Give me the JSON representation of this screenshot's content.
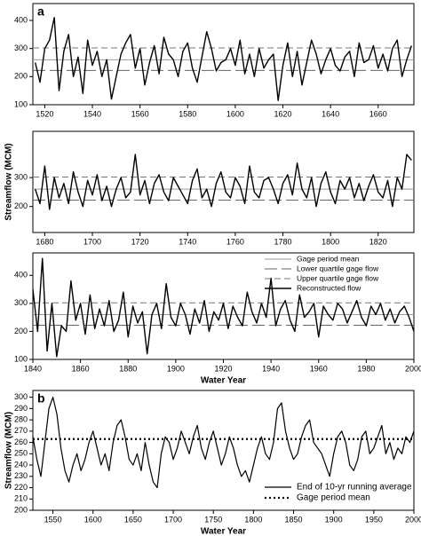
{
  "chart_data": [
    {
      "type": "line",
      "panel_label": "a",
      "xlim": [
        1515,
        1675
      ],
      "xticks": [
        1520,
        1540,
        1560,
        1580,
        1600,
        1620,
        1640,
        1660
      ],
      "ylim": [
        100,
        460
      ],
      "yticks": [
        100,
        200,
        300,
        400
      ],
      "series": [
        {
          "color": "#999999",
          "dash": "none",
          "width": 1,
          "x": [
            1515,
            1675
          ],
          "values": [
            260,
            260
          ]
        },
        {
          "color": "#666666",
          "dash": "14,5",
          "width": 1,
          "x": [
            1515,
            1675
          ],
          "values": [
            222,
            222
          ]
        },
        {
          "color": "#777777",
          "dash": "7,4",
          "width": 1,
          "x": [
            1515,
            1675
          ],
          "values": [
            302,
            302
          ]
        },
        {
          "color": "#000000",
          "dash": "none",
          "width": 1.4,
          "x": [
            1516,
            1518,
            1520,
            1522,
            1524,
            1526,
            1528,
            1530,
            1532,
            1534,
            1536,
            1538,
            1540,
            1542,
            1544,
            1546,
            1548,
            1550,
            1552,
            1554,
            1556,
            1558,
            1560,
            1562,
            1564,
            1566,
            1568,
            1570,
            1572,
            1574,
            1576,
            1578,
            1580,
            1582,
            1584,
            1586,
            1588,
            1590,
            1592,
            1594,
            1596,
            1598,
            1600,
            1602,
            1604,
            1606,
            1608,
            1610,
            1612,
            1614,
            1616,
            1618,
            1620,
            1622,
            1624,
            1626,
            1628,
            1630,
            1632,
            1634,
            1636,
            1638,
            1640,
            1642,
            1644,
            1646,
            1648,
            1650,
            1652,
            1654,
            1656,
            1658,
            1660,
            1662,
            1664,
            1666,
            1668,
            1670,
            1672,
            1674
          ],
          "values": [
            250,
            180,
            300,
            330,
            410,
            150,
            290,
            350,
            200,
            270,
            140,
            330,
            240,
            290,
            200,
            260,
            120,
            200,
            280,
            320,
            350,
            230,
            300,
            170,
            250,
            310,
            210,
            340,
            280,
            260,
            200,
            290,
            320,
            230,
            180,
            270,
            360,
            300,
            220,
            250,
            260,
            300,
            240,
            330,
            210,
            280,
            200,
            300,
            230,
            260,
            280,
            115,
            240,
            320,
            200,
            290,
            170,
            250,
            330,
            280,
            210,
            260,
            300,
            240,
            220,
            270,
            290,
            200,
            320,
            250,
            260,
            310,
            230,
            280,
            220,
            300,
            330,
            200,
            260,
            310
          ]
        }
      ]
    },
    {
      "type": "line",
      "ylabel": "Streamflow (MCM)",
      "xlim": [
        1675,
        1835
      ],
      "xticks": [
        1680,
        1700,
        1720,
        1740,
        1760,
        1780,
        1800,
        1820
      ],
      "ylim": [
        110,
        460
      ],
      "yticks": [
        200,
        300
      ],
      "series": [
        {
          "color": "#999999",
          "dash": "none",
          "width": 1,
          "x": [
            1675,
            1835
          ],
          "values": [
            260,
            260
          ]
        },
        {
          "color": "#666666",
          "dash": "14,5",
          "width": 1,
          "x": [
            1675,
            1835
          ],
          "values": [
            222,
            222
          ]
        },
        {
          "color": "#777777",
          "dash": "7,4",
          "width": 1,
          "x": [
            1675,
            1835
          ],
          "values": [
            302,
            302
          ]
        },
        {
          "color": "#000000",
          "dash": "none",
          "width": 1.4,
          "x": [
            1676,
            1678,
            1680,
            1682,
            1684,
            1686,
            1688,
            1690,
            1692,
            1694,
            1696,
            1698,
            1700,
            1702,
            1704,
            1706,
            1708,
            1710,
            1712,
            1714,
            1716,
            1718,
            1720,
            1722,
            1724,
            1726,
            1728,
            1730,
            1732,
            1734,
            1736,
            1738,
            1740,
            1742,
            1744,
            1746,
            1748,
            1750,
            1752,
            1754,
            1756,
            1758,
            1760,
            1762,
            1764,
            1766,
            1768,
            1770,
            1772,
            1774,
            1776,
            1778,
            1780,
            1782,
            1784,
            1786,
            1788,
            1790,
            1792,
            1794,
            1796,
            1798,
            1800,
            1802,
            1804,
            1806,
            1808,
            1810,
            1812,
            1814,
            1816,
            1818,
            1820,
            1822,
            1824,
            1826,
            1828,
            1830,
            1832,
            1834
          ],
          "values": [
            260,
            210,
            340,
            190,
            300,
            230,
            280,
            210,
            320,
            250,
            200,
            290,
            240,
            310,
            220,
            270,
            200,
            260,
            300,
            230,
            250,
            380,
            240,
            290,
            210,
            280,
            310,
            250,
            220,
            300,
            270,
            240,
            210,
            290,
            330,
            230,
            260,
            200,
            280,
            320,
            250,
            230,
            300,
            270,
            210,
            340,
            250,
            230,
            290,
            300,
            260,
            210,
            280,
            310,
            240,
            350,
            260,
            230,
            300,
            200,
            280,
            320,
            250,
            210,
            290,
            260,
            300,
            230,
            280,
            220,
            270,
            310,
            250,
            230,
            290,
            200,
            300,
            260,
            380,
            360
          ]
        }
      ]
    },
    {
      "type": "line",
      "xlabel": "Water Year",
      "legend": "upper right",
      "xlim": [
        1840,
        2000
      ],
      "xticks": [
        1840,
        1860,
        1880,
        1900,
        1920,
        1940,
        1960,
        1980,
        2000
      ],
      "ylim": [
        100,
        480
      ],
      "yticks": [
        100,
        200,
        300,
        400
      ],
      "series": [
        {
          "name": "Gage period mean",
          "color": "#999999",
          "dash": "none",
          "width": 1,
          "x": [
            1840,
            2000
          ],
          "values": [
            260,
            260
          ]
        },
        {
          "name": "Lower quartile gage flow",
          "color": "#666666",
          "dash": "14,5",
          "width": 1,
          "x": [
            1840,
            2000
          ],
          "values": [
            222,
            222
          ]
        },
        {
          "name": "Upper quartile gage flow",
          "color": "#777777",
          "dash": "7,4",
          "width": 1,
          "x": [
            1840,
            2000
          ],
          "values": [
            302,
            302
          ]
        },
        {
          "name": "Reconstructed flow",
          "color": "#000000",
          "dash": "none",
          "width": 1.4,
          "x": [
            1840,
            1842,
            1844,
            1846,
            1848,
            1850,
            1852,
            1854,
            1856,
            1858,
            1860,
            1862,
            1864,
            1866,
            1868,
            1870,
            1872,
            1874,
            1876,
            1878,
            1880,
            1882,
            1884,
            1886,
            1888,
            1890,
            1892,
            1894,
            1896,
            1898,
            1900,
            1902,
            1904,
            1906,
            1908,
            1910,
            1912,
            1914,
            1916,
            1918,
            1920,
            1922,
            1924,
            1926,
            1928,
            1930,
            1932,
            1934,
            1936,
            1938,
            1940,
            1942,
            1944,
            1946,
            1948,
            1950,
            1952,
            1954,
            1956,
            1958,
            1960,
            1962,
            1964,
            1966,
            1968,
            1970,
            1972,
            1974,
            1976,
            1978,
            1980,
            1982,
            1984,
            1986,
            1988,
            1990,
            1992,
            1994,
            1996,
            1998,
            2000
          ],
          "values": [
            350,
            200,
            460,
            130,
            300,
            110,
            220,
            200,
            380,
            240,
            300,
            190,
            330,
            210,
            280,
            220,
            310,
            200,
            240,
            340,
            180,
            290,
            230,
            270,
            120,
            260,
            300,
            210,
            370,
            250,
            220,
            300,
            260,
            190,
            280,
            230,
            310,
            200,
            270,
            240,
            300,
            210,
            290,
            250,
            220,
            340,
            270,
            230,
            300,
            250,
            390,
            220,
            280,
            310,
            240,
            200,
            330,
            250,
            270,
            300,
            180,
            290,
            260,
            240,
            300,
            280,
            230,
            270,
            310,
            250,
            220,
            290,
            260,
            300,
            240,
            280,
            230,
            270,
            290,
            250,
            200
          ]
        }
      ]
    },
    {
      "type": "line",
      "panel_label": "b",
      "xlabel": "Water Year",
      "ylabel": "Streamflow (MCM)",
      "legend": "lower right",
      "xlim": [
        1525,
        2000
      ],
      "xticks": [
        1550,
        1600,
        1650,
        1700,
        1750,
        1800,
        1850,
        1900,
        1950,
        2000
      ],
      "ylim": [
        200,
        306
      ],
      "yticks": [
        200,
        210,
        220,
        230,
        240,
        250,
        260,
        270,
        280,
        290,
        300
      ],
      "series": [
        {
          "name": "End of 10-yr running average",
          "color": "#000000",
          "dash": "none",
          "width": 1.2,
          "x": [
            1525,
            1530,
            1535,
            1540,
            1545,
            1550,
            1555,
            1560,
            1565,
            1570,
            1575,
            1580,
            1585,
            1590,
            1595,
            1600,
            1605,
            1610,
            1615,
            1620,
            1625,
            1630,
            1635,
            1640,
            1645,
            1650,
            1655,
            1660,
            1665,
            1670,
            1675,
            1680,
            1685,
            1690,
            1695,
            1700,
            1705,
            1710,
            1715,
            1720,
            1725,
            1730,
            1735,
            1740,
            1745,
            1750,
            1755,
            1760,
            1765,
            1770,
            1775,
            1780,
            1785,
            1790,
            1795,
            1800,
            1805,
            1810,
            1815,
            1820,
            1825,
            1830,
            1835,
            1840,
            1845,
            1850,
            1855,
            1860,
            1865,
            1870,
            1875,
            1880,
            1885,
            1890,
            1895,
            1900,
            1905,
            1910,
            1915,
            1920,
            1925,
            1930,
            1935,
            1940,
            1945,
            1950,
            1955,
            1960,
            1965,
            1970,
            1975,
            1980,
            1985,
            1990,
            1995,
            2000
          ],
          "values": [
            265,
            245,
            230,
            260,
            290,
            300,
            285,
            255,
            235,
            225,
            240,
            250,
            235,
            245,
            260,
            270,
            255,
            240,
            250,
            235,
            260,
            275,
            280,
            265,
            245,
            240,
            250,
            235,
            260,
            240,
            225,
            220,
            250,
            265,
            260,
            245,
            255,
            270,
            260,
            250,
            265,
            275,
            255,
            245,
            260,
            270,
            255,
            240,
            250,
            265,
            255,
            240,
            230,
            235,
            225,
            240,
            255,
            265,
            250,
            245,
            260,
            290,
            295,
            270,
            255,
            245,
            250,
            265,
            275,
            280,
            260,
            255,
            250,
            240,
            230,
            250,
            265,
            270,
            260,
            240,
            235,
            245,
            265,
            270,
            250,
            255,
            265,
            275,
            250,
            260,
            245,
            255,
            250,
            265,
            260,
            270
          ]
        },
        {
          "name": "Gage period mean",
          "color": "#000000",
          "dash": "2,3",
          "width": 2.2,
          "x": [
            1525,
            2000
          ],
          "values": [
            263,
            263
          ]
        }
      ]
    }
  ]
}
